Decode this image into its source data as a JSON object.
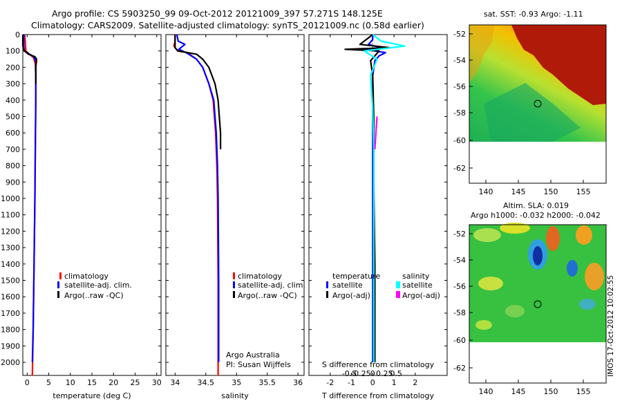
{
  "header": {
    "line1": "Argo profile: CS 5903250_99 09-Oct-2012 20121009_397 57.271S 148.125E",
    "line2": "Climatology: CARS2009. Satellite-adjusted climatology: synTS_20121009.nc (0.58d earlier)"
  },
  "colors": {
    "climatology": "#ff0000",
    "satellite": "#0000ff",
    "argo": "#000000",
    "s_satellite": "#00ffff",
    "s_argo": "#ff00ff"
  },
  "legend_profiles": [
    "climatology",
    "satellite-adj. clim.",
    "Argo(..raw -QC)"
  ],
  "legend_diff": {
    "t_title": "temperature",
    "s_title": "salinity",
    "t_items": [
      "satellite",
      "Argo(-adj)"
    ],
    "s_items": [
      "satellite",
      "Argo(-adj)"
    ]
  },
  "annotation": {
    "line1": "Argo Australia",
    "line2": "PI: Susan Wijffels"
  },
  "maps": {
    "sst_title": "sat. SST: -0.93 Argo: -1.11",
    "sla_title1": "Altim. SLA: 0.019",
    "sla_title2": "Argo h1000: -0.032 h2000: -0.042",
    "yticks": [
      "-52",
      "-54",
      "-56",
      "-58",
      "-60",
      "-62"
    ],
    "xticks": [
      "140",
      "145",
      "150",
      "155"
    ]
  },
  "footer": {
    "timestamp": "IMOS 17-Oct-2012 10:02:55"
  },
  "chart_data": [
    {
      "type": "line",
      "xlabel": "temperature (deg C)",
      "ylabel": "",
      "xlim": [
        -1,
        31
      ],
      "ylim": [
        2080,
        0
      ],
      "xticks": [
        0,
        5,
        10,
        15,
        20,
        25,
        30
      ],
      "yticks": [
        0,
        100,
        200,
        300,
        400,
        500,
        600,
        700,
        800,
        900,
        1000,
        1100,
        1200,
        1300,
        1400,
        1500,
        1600,
        1700,
        1800,
        1900,
        2000
      ],
      "series": [
        {
          "name": "climatology",
          "points": [
            [
              -0.6,
              0
            ],
            [
              -0.5,
              20
            ],
            [
              -0.4,
              60
            ],
            [
              -0.3,
              100
            ],
            [
              0.5,
              120
            ],
            [
              1.5,
              140
            ],
            [
              1.9,
              180
            ],
            [
              2.0,
              250
            ],
            [
              2.0,
              400
            ],
            [
              1.9,
              700
            ],
            [
              1.8,
              1000
            ],
            [
              1.6,
              1400
            ],
            [
              1.4,
              1800
            ],
            [
              1.2,
              2080
            ]
          ]
        },
        {
          "name": "satellite-adj. clim.",
          "points": [
            [
              -0.7,
              0
            ],
            [
              -0.8,
              20
            ],
            [
              -0.8,
              60
            ],
            [
              -0.7,
              100
            ],
            [
              0.3,
              115
            ],
            [
              1.5,
              135
            ],
            [
              2.0,
              160
            ],
            [
              2.0,
              250
            ],
            [
              2.0,
              400
            ],
            [
              1.9,
              700
            ],
            [
              1.8,
              1000
            ],
            [
              1.6,
              1400
            ],
            [
              1.4,
              1800
            ],
            [
              1.2,
              2000
            ]
          ]
        },
        {
          "name": "Argo(..raw -QC)",
          "points": [
            [
              -1.0,
              0
            ],
            [
              -1.0,
              40
            ],
            [
              -1.0,
              70
            ],
            [
              -0.6,
              100
            ],
            [
              0.3,
              120
            ],
            [
              1.8,
              135
            ],
            [
              2.2,
              150
            ],
            [
              2.0,
              200
            ],
            [
              2.0,
              300
            ]
          ]
        }
      ]
    },
    {
      "type": "line",
      "xlabel": "salinity",
      "ylabel": "",
      "xlim": [
        33.85,
        36.1
      ],
      "ylim": [
        2080,
        0
      ],
      "xticks": [
        34,
        34.5,
        35,
        35.5,
        36
      ],
      "xticklabels": [
        "34",
        "34.5",
        "35",
        "35.5",
        "36"
      ],
      "series": [
        {
          "name": "climatology",
          "points": [
            [
              34.0,
              0
            ],
            [
              34.0,
              40
            ],
            [
              33.98,
              70
            ],
            [
              34.04,
              100
            ],
            [
              34.2,
              110
            ],
            [
              34.35,
              150
            ],
            [
              34.45,
              200
            ],
            [
              34.55,
              300
            ],
            [
              34.62,
              400
            ],
            [
              34.66,
              600
            ],
            [
              34.68,
              800
            ],
            [
              34.69,
              1000
            ],
            [
              34.7,
              1500
            ],
            [
              34.7,
              2000
            ],
            [
              34.7,
              2080
            ]
          ]
        },
        {
          "name": "satellite-adj. clim.",
          "points": [
            [
              34.03,
              0
            ],
            [
              34.05,
              40
            ],
            [
              34.16,
              60
            ],
            [
              34.06,
              90
            ],
            [
              34.18,
              110
            ],
            [
              34.35,
              150
            ],
            [
              34.45,
              200
            ],
            [
              34.55,
              300
            ],
            [
              34.63,
              400
            ],
            [
              34.67,
              600
            ],
            [
              34.69,
              800
            ],
            [
              34.7,
              1000
            ],
            [
              34.71,
              1500
            ],
            [
              34.71,
              1900
            ],
            [
              34.71,
              2000
            ]
          ]
        },
        {
          "name": "Argo(..raw -QC)",
          "points": [
            [
              34.0,
              0
            ],
            [
              34.0,
              50
            ],
            [
              34.0,
              80
            ],
            [
              34.05,
              100
            ],
            [
              34.35,
              120
            ],
            [
              34.45,
              150
            ],
            [
              34.55,
              200
            ],
            [
              34.65,
              300
            ],
            [
              34.7,
              400
            ],
            [
              34.72,
              500
            ],
            [
              34.74,
              600
            ],
            [
              34.74,
              700
            ]
          ]
        }
      ]
    },
    {
      "type": "line",
      "xlabel": "T difference from climatology",
      "ylabel": "",
      "x2label": "S difference from climatology",
      "xlim": [
        -3,
        3.5
      ],
      "ylim": [
        2080,
        0
      ],
      "xticks": [
        -2,
        -1,
        0,
        1,
        2
      ],
      "x2ticks": [
        -0.5,
        -0.25,
        0,
        0.25,
        0.5
      ],
      "x2ticklabels": [
        "-0.5",
        "-0.25",
        "0",
        "0.25",
        "0.5"
      ],
      "series": [
        {
          "name": "temperature satellite",
          "points": [
            [
              0,
              0
            ],
            [
              0,
              30
            ],
            [
              -0.2,
              60
            ],
            [
              0.4,
              80
            ],
            [
              -0.4,
              90
            ],
            [
              0.6,
              110
            ],
            [
              0.3,
              130
            ],
            [
              0.1,
              160
            ],
            [
              0,
              250
            ],
            [
              0,
              600
            ],
            [
              0,
              1000
            ],
            [
              0,
              1500
            ],
            [
              0,
              2000
            ]
          ]
        },
        {
          "name": "temperature Argo(-adj)",
          "points": [
            [
              0,
              0
            ],
            [
              -0.6,
              60
            ],
            [
              0.8,
              80
            ],
            [
              -1.3,
              90
            ],
            [
              0.3,
              100
            ],
            [
              0.1,
              130
            ],
            [
              -0.1,
              160
            ],
            [
              0,
              250
            ],
            [
              0.05,
              500
            ],
            [
              0.05,
              900
            ],
            [
              0.1,
              1400
            ],
            [
              0.1,
              2000
            ]
          ]
        },
        {
          "name": "salinity satellite",
          "points": [
            [
              0,
              0
            ],
            [
              0.4,
              40
            ],
            [
              1.5,
              70
            ],
            [
              -0.4,
              100
            ],
            [
              0.2,
              150
            ],
            [
              -0.1,
              250
            ],
            [
              0,
              450
            ],
            [
              0.05,
              700
            ],
            [
              0.05,
              1000
            ],
            [
              0.05,
              1500
            ],
            [
              0.05,
              2000
            ]
          ]
        },
        {
          "name": "salinity Argo(-adj)",
          "points": [
            [
              0.2,
              500
            ],
            [
              0.15,
              600
            ],
            [
              0.1,
              700
            ]
          ]
        }
      ]
    }
  ]
}
